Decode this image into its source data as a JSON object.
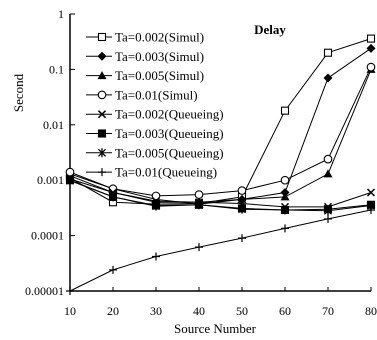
{
  "chart_data": {
    "type": "line",
    "title": "Delay",
    "xlabel": "Source Number",
    "ylabel": "Second",
    "x": [
      10,
      20,
      30,
      40,
      50,
      60,
      70,
      80
    ],
    "xlim": [
      10,
      80
    ],
    "ylim": [
      1e-05,
      1
    ],
    "y_scale": "log",
    "y_ticks": [
      {
        "value": 1,
        "label": "1"
      },
      {
        "value": 0.1,
        "label": "0.1"
      },
      {
        "value": 0.01,
        "label": "0.01"
      },
      {
        "value": 0.001,
        "label": "0.001"
      },
      {
        "value": 0.0001,
        "label": "0.0001"
      },
      {
        "value": 1e-05,
        "label": "0.00001"
      }
    ],
    "x_ticks": [
      "10",
      "20",
      "30",
      "40",
      "50",
      "60",
      "70",
      "80"
    ],
    "grid": false,
    "legend_position": "top-left",
    "series": [
      {
        "name": "Ta=0.002(Simul)",
        "marker": "open-square",
        "values": [
          0.0011,
          0.0004,
          0.00037,
          0.00038,
          0.0005,
          0.018,
          0.2,
          0.36
        ]
      },
      {
        "name": "Ta=0.003(Simul)",
        "marker": "filled-diamond",
        "values": [
          0.0012,
          0.0006,
          0.0004,
          0.0004,
          0.00045,
          0.0006,
          0.07,
          0.24
        ]
      },
      {
        "name": "Ta=0.005(Simul)",
        "marker": "filled-triangle",
        "values": [
          0.0013,
          0.0007,
          0.00045,
          0.00037,
          0.00045,
          0.0005,
          0.0013,
          0.1
        ]
      },
      {
        "name": "Ta=0.01(Simul)",
        "marker": "open-circle",
        "values": [
          0.0014,
          0.0007,
          0.00052,
          0.00055,
          0.00065,
          0.001,
          0.0024,
          0.11
        ]
      },
      {
        "name": "Ta=0.002(Queueing)",
        "marker": "x",
        "values": [
          0.00105,
          0.0006,
          0.00042,
          0.0004,
          0.00038,
          0.00033,
          0.00033,
          0.0006
        ]
      },
      {
        "name": "Ta=0.003(Queueing)",
        "marker": "filled-square",
        "values": [
          0.001,
          0.0005,
          0.00035,
          0.00036,
          0.00031,
          0.00029,
          0.0003,
          0.00036
        ]
      },
      {
        "name": "Ta=0.005(Queueing)",
        "marker": "asterisk",
        "values": [
          0.00098,
          0.0005,
          0.00034,
          0.00036,
          0.0003,
          0.00029,
          0.00028,
          0.00035
        ]
      },
      {
        "name": "Ta=0.01(Queueing)",
        "marker": "plus",
        "values": [
          1e-05,
          2.4e-05,
          4.2e-05,
          6.2e-05,
          9e-05,
          0.000135,
          0.0002,
          0.00029
        ]
      }
    ]
  }
}
